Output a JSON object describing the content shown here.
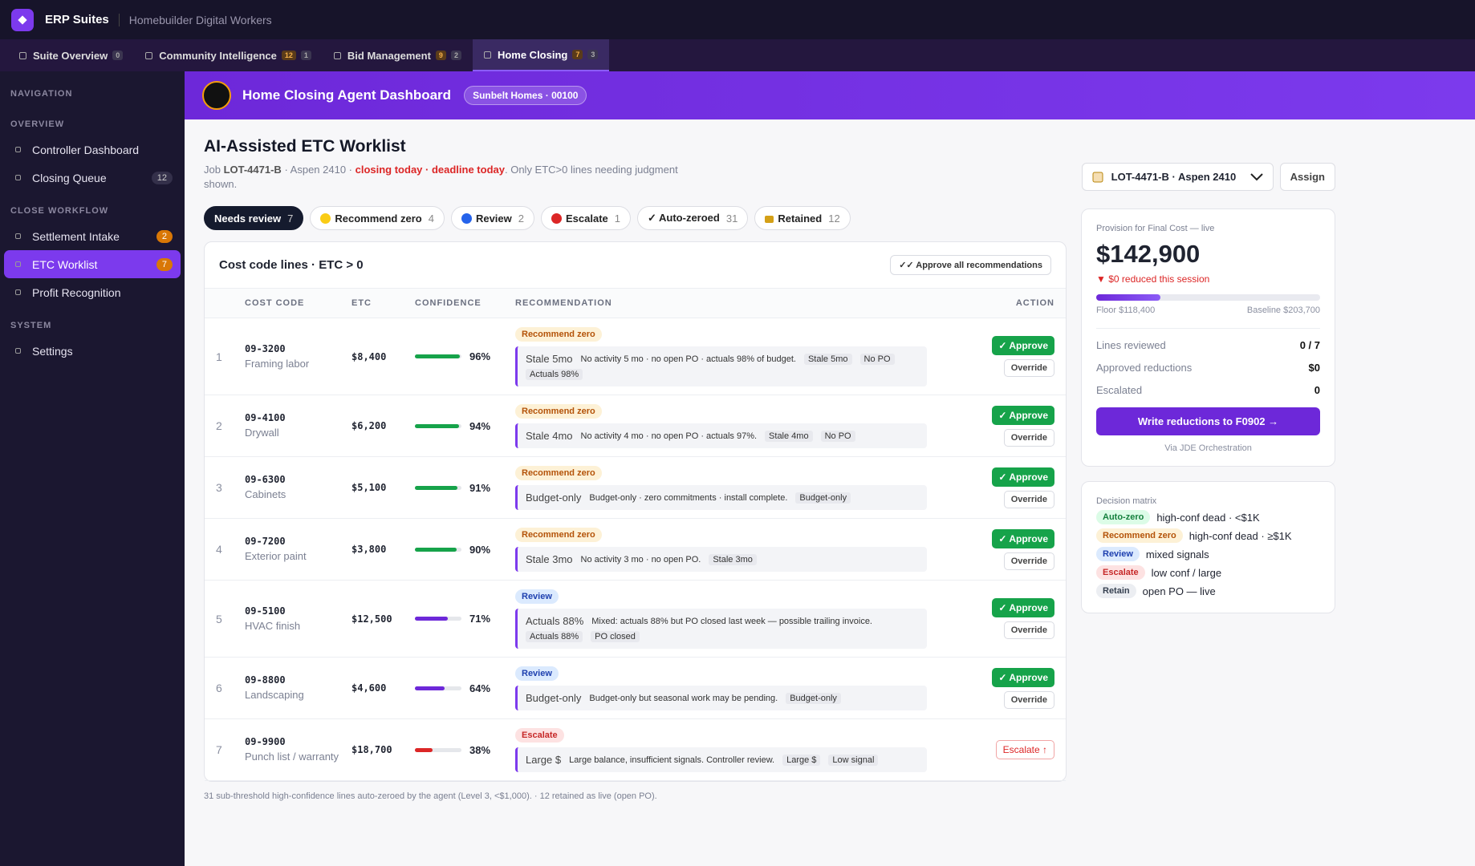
{
  "app": {
    "name": "ERP Suites",
    "subtitle": "Homebuilder Digital Workers"
  },
  "tabs": [
    {
      "label": "Suite Overview",
      "badges": [
        0
      ]
    },
    {
      "label": "Community Intelligence",
      "badges": [
        12,
        1
      ]
    },
    {
      "label": "Bid Management",
      "badges": [
        9,
        2
      ]
    },
    {
      "label": "Home Closing",
      "badges": [
        7,
        3
      ],
      "active": true
    }
  ],
  "sidebar": {
    "title": "NAVIGATION",
    "sections": [
      {
        "title": "OVERVIEW",
        "items": [
          {
            "label": "Controller Dashboard"
          },
          {
            "label": "Closing Queue",
            "badge": 12
          }
        ]
      },
      {
        "title": "CLOSE WORKFLOW",
        "items": [
          {
            "label": "Settlement Intake",
            "badge": 2,
            "badge_style": "warn"
          },
          {
            "label": "ETC Worklist",
            "badge": 7,
            "badge_style": "warn",
            "active": true
          },
          {
            "label": "Profit Recognition"
          }
        ]
      },
      {
        "title": "SYSTEM",
        "items": [
          {
            "label": "Settings"
          }
        ]
      }
    ]
  },
  "banner": {
    "title": "Home Closing Agent Dashboard",
    "chip": "Sunbelt Homes · 00100"
  },
  "worklist": {
    "title": "AI-Assisted ETC Worklist",
    "subtitle": [
      "Job ",
      "LOT-4471-B",
      " · Aspen 2410 · ",
      "closing today · deadline today",
      ". Only ETC>0 lines needing judgment shown."
    ],
    "filters": [
      {
        "label": "Needs review",
        "count": 7,
        "active": true
      },
      {
        "label": "Recommend zero",
        "count": 4,
        "icon": "#facc15"
      },
      {
        "label": "Review",
        "count": 2,
        "icon": "#2563eb"
      },
      {
        "label": "Escalate",
        "count": 1,
        "icon": "#dc2626"
      },
      {
        "label": "✓ Auto-zeroed",
        "count": 31
      },
      {
        "label": "Retained",
        "count": 12,
        "icon": "lock"
      }
    ],
    "table": {
      "title": "Cost code lines · ETC > 0",
      "action": "✓✓ Approve all recommendations",
      "columns": [
        "COST CODE",
        "ETC",
        "CONFIDENCE",
        "RECOMMENDATION",
        "ACTION"
      ],
      "rows": [
        {
          "n": 1,
          "code": "09-3200",
          "name": "Framing labor",
          "etc": "$8,400",
          "confidence": 96,
          "confidence_label": "96%",
          "tag": "Recommend zero",
          "kind": "zero",
          "signal": "Stale 5mo",
          "note": "No activity 5 mo · no open PO · actuals 98% of budget.",
          "chips": [
            "Stale 5mo",
            "No PO",
            "Actuals 98%"
          ],
          "actions": [
            "✓ Approve",
            "Override"
          ]
        },
        {
          "n": 2,
          "code": "09-4100",
          "name": "Drywall",
          "etc": "$6,200",
          "confidence": 94,
          "confidence_label": "94%",
          "tag": "Recommend zero",
          "kind": "zero",
          "signal": "Stale 4mo",
          "note": "No activity 4 mo · no open PO · actuals 97%.",
          "chips": [
            "Stale 4mo",
            "No PO"
          ],
          "actions": [
            "✓ Approve",
            "Override"
          ]
        },
        {
          "n": 3,
          "code": "09-6300",
          "name": "Cabinets",
          "etc": "$5,100",
          "confidence": 91,
          "confidence_label": "91%",
          "tag": "Recommend zero",
          "kind": "zero",
          "signal": "Budget-only",
          "note": "Budget-only · zero commitments · install complete.",
          "chips": [
            "Budget-only"
          ],
          "actions": [
            "✓ Approve",
            "Override"
          ]
        },
        {
          "n": 4,
          "code": "09-7200",
          "name": "Exterior paint",
          "etc": "$3,800",
          "confidence": 90,
          "confidence_label": "90%",
          "tag": "Recommend zero",
          "kind": "zero",
          "signal": "Stale 3mo",
          "note": "No activity 3 mo · no open PO.",
          "chips": [
            "Stale 3mo"
          ],
          "actions": [
            "✓ Approve",
            "Override"
          ]
        },
        {
          "n": 5,
          "code": "09-5100",
          "name": "HVAC finish",
          "etc": "$12,500",
          "confidence": 71,
          "confidence_label": "71%",
          "tag": "Review",
          "kind": "review",
          "signal": "Actuals 88%",
          "note": "Mixed: actuals 88% but PO closed last week — possible trailing invoice.",
          "chips": [
            "Actuals 88%",
            "PO closed"
          ],
          "actions": [
            "✓ Approve",
            "Override"
          ]
        },
        {
          "n": 6,
          "code": "09-8800",
          "name": "Landscaping",
          "etc": "$4,600",
          "confidence": 64,
          "confidence_label": "64%",
          "tag": "Review",
          "kind": "review",
          "signal": "Budget-only",
          "note": "Budget-only but seasonal work may be pending.",
          "chips": [
            "Budget-only"
          ],
          "actions": [
            "✓ Approve",
            "Override"
          ]
        },
        {
          "n": 7,
          "code": "09-9900",
          "name": "Punch list / warranty",
          "etc": "$18,700",
          "confidence": 38,
          "confidence_label": "38%",
          "tag": "Escalate",
          "kind": "escalate",
          "signal": "Large $",
          "note": "Large balance, insufficient signals. Controller review.",
          "chips": [
            "Large $",
            "Low signal"
          ],
          "actions": [
            "Escalate ↑"
          ]
        }
      ]
    },
    "footer": "31 sub-threshold high-confidence lines auto-zeroed by the agent (Level 3, <$1,000). · 12 retained as live (open PO)."
  },
  "side": {
    "selector": "LOT-4471-B · Aspen 2410",
    "assign": "Assign",
    "provision": {
      "title": "Provision for Final Cost — live",
      "value": 142900,
      "value_label": "$142,900",
      "delta": "▼ $0 reduced this session",
      "floor": 118400,
      "floor_label": "Floor $118,400",
      "baseline": 203700,
      "baseline_label": "Baseline $203,700"
    },
    "stats": [
      {
        "label": "Lines reviewed",
        "value": "0 / 7"
      },
      {
        "label": "Approved reductions",
        "value": "$0"
      },
      {
        "label": "Escalated",
        "value": "0"
      }
    ],
    "button": "Write reductions to F0902 →",
    "via": "Via JDE Orchestration",
    "matrix": {
      "title": "Decision matrix",
      "rows": [
        {
          "tag": "Auto-zero",
          "kind": "auto",
          "text": "high-conf dead · <$1K"
        },
        {
          "tag": "Recommend zero",
          "kind": "zero",
          "text": "high-conf dead · ≥$1K"
        },
        {
          "tag": "Review",
          "kind": "review",
          "text": "mixed signals"
        },
        {
          "tag": "Escalate",
          "kind": "escalate",
          "text": "low conf / large"
        },
        {
          "tag": "Retain",
          "kind": "retain",
          "text": "open PO — live"
        }
      ]
    }
  }
}
